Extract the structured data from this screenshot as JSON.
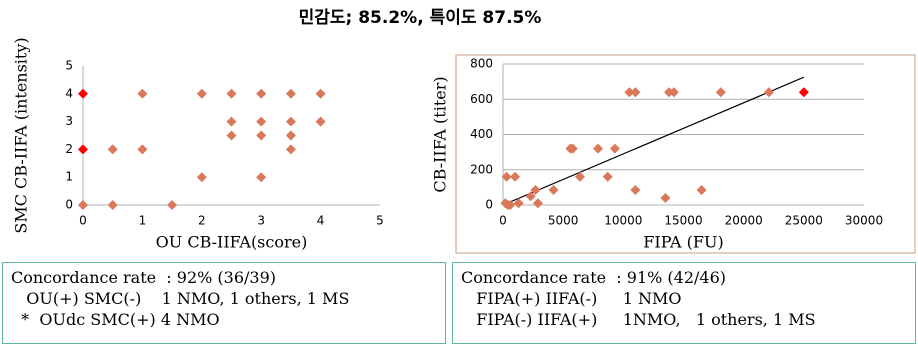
{
  "title": "민감도; 85.2%, 특이도 87.5%",
  "chart_data": [
    {
      "type": "scatter",
      "xlabel": "OU CB-IIFA(score)",
      "ylabel": "SMC CB-IIFA (intensity)",
      "xlim": [
        0,
        5
      ],
      "xticks": [
        0,
        1,
        2,
        3,
        4,
        5
      ],
      "ylim": [
        0,
        5
      ],
      "yticks": [
        0,
        1,
        2,
        3,
        4,
        5
      ],
      "grid": false,
      "series": [
        {
          "color": "#d9785a",
          "x": [
            0,
            0.5,
            0.5,
            1,
            1,
            1.5,
            2,
            2,
            2.5,
            2.5,
            2.5,
            3,
            3,
            3,
            3,
            3.5,
            3.5,
            3.5,
            3.5,
            4,
            4
          ],
          "values": [
            0,
            2,
            0,
            4,
            2,
            0,
            4,
            1,
            4,
            3,
            2.5,
            4,
            3,
            2.5,
            1,
            4,
            3,
            2.5,
            2,
            4,
            3
          ]
        },
        {
          "color": "#ff0000",
          "x": [
            0,
            0
          ],
          "values": [
            4,
            2
          ]
        }
      ]
    },
    {
      "type": "scatter",
      "xlabel": "FIPA (FU)",
      "ylabel": "CB-IIFA (titer)",
      "xlim": [
        0,
        30000
      ],
      "xticks": [
        0,
        5000,
        10000,
        15000,
        20000,
        25000,
        30000
      ],
      "ylim": [
        0,
        800
      ],
      "yticks": [
        0,
        200,
        400,
        600,
        800
      ],
      "grid": true,
      "series": [
        {
          "color": "#d9785a",
          "x": [
            200,
            400,
            600,
            300,
            1000,
            1300,
            2300,
            2700,
            2900,
            4200,
            5600,
            5800,
            6400,
            7900,
            8700,
            9300,
            10500,
            11000,
            11000,
            13500,
            13800,
            14200,
            16500,
            18100,
            22100
          ],
          "values": [
            10,
            0,
            0,
            160,
            160,
            10,
            50,
            85,
            10,
            85,
            320,
            320,
            160,
            320,
            160,
            320,
            640,
            640,
            85,
            40,
            640,
            640,
            85,
            640,
            640
          ]
        },
        {
          "color": "#ff0000",
          "x": [
            25000
          ],
          "values": [
            640
          ]
        }
      ],
      "trendline": {
        "color": "#000000",
        "x": [
          0,
          25000
        ],
        "values": [
          0,
          725
        ]
      }
    }
  ],
  "notes": [
    {
      "lines": [
        "Concordance rate  : 92% (36/39)",
        "   OU(+) SMC(-)    1 NMO, 1 others, 1 MS",
        "  *  OUdc SMC(+) 4 NMO"
      ]
    },
    {
      "lines": [
        "Concordance rate  : 91% (42/46)",
        "   FIPA(+) IIFA(-)     1 NMO",
        "   FIPA(-) IIFA(+)     1NMO,   1 others, 1 MS"
      ]
    }
  ]
}
